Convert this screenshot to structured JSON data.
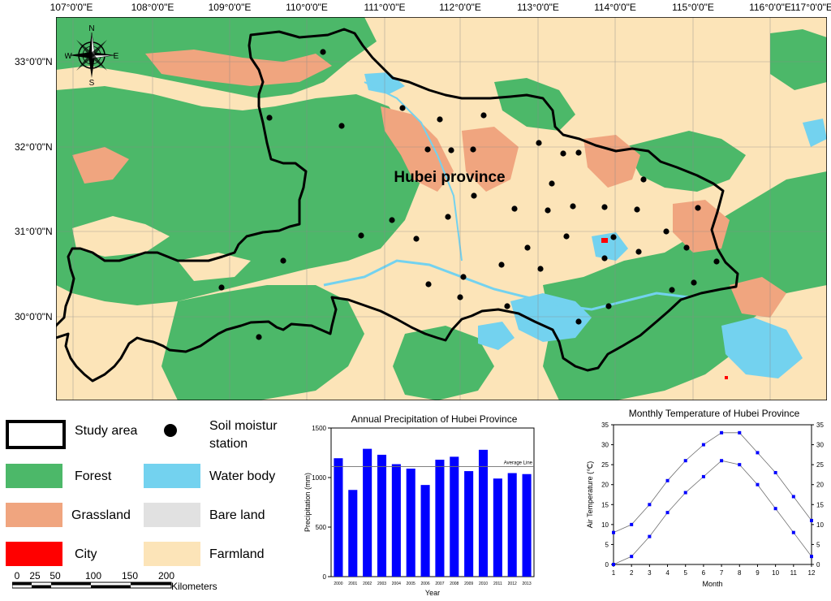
{
  "map": {
    "longitude_labels": [
      "107°0'0\"E",
      "108°0'0\"E",
      "109°0'0\"E",
      "110°0'0\"E",
      "111°0'0\"E",
      "112°0'0\"E",
      "113°0'0\"E",
      "114°0'0\"E",
      "115°0'0\"E",
      "116°0'0\"E",
      "117°0'0\"E"
    ],
    "latitude_labels": [
      "33°0'0\"N",
      "32°0'0\"N",
      "31°0'0\"N",
      "30°0'0\"N"
    ],
    "region_label": "Hubei province",
    "compass": {
      "n": "N",
      "s": "S",
      "e": "E",
      "w": "W"
    },
    "colors": {
      "forest": "#4cb869",
      "grassland": "#f0a57f",
      "city": "#ff0000",
      "water": "#73d2ef",
      "bare": "#e1e1e1",
      "farmland": "#fce4b8",
      "boundary": "#000000"
    }
  },
  "legend": {
    "study_area": "Study area",
    "station_line1": "Soil moistur",
    "station_line2": "station",
    "forest": "Forest",
    "water": "Water body",
    "grassland": "Grassland",
    "bare": "Bare land",
    "city": "City",
    "farmland": "Farmland"
  },
  "scalebar": {
    "ticks": [
      "0",
      "25",
      "50",
      "100",
      "150",
      "200"
    ],
    "unit": "Kilometers"
  },
  "chart_data": [
    {
      "type": "bar",
      "title": "Annual Precipitation of Hubei Province",
      "xlabel": "Year",
      "ylabel": "Precipitation (mm)",
      "categories": [
        "2000",
        "2001",
        "2002",
        "2003",
        "2004",
        "2005",
        "2006",
        "2007",
        "2008",
        "2009",
        "2010",
        "2011",
        "2012",
        "2013"
      ],
      "values": [
        1195,
        875,
        1290,
        1230,
        1135,
        1090,
        925,
        1180,
        1210,
        1065,
        1280,
        990,
        1045,
        1035
      ],
      "ylim": [
        0,
        1500
      ],
      "yticks": [
        "0",
        "500",
        "1000",
        "1500"
      ],
      "reference_line": {
        "label": "Average Line",
        "value": 1110
      },
      "color": "#0000ff"
    },
    {
      "type": "line",
      "title": "Monthly Temperature of Hubei Province",
      "xlabel": "Month",
      "ylabel": "Air Temperature (℃)",
      "x": [
        1,
        2,
        3,
        4,
        5,
        6,
        7,
        8,
        9,
        10,
        11,
        12
      ],
      "series": [
        {
          "values": [
            8,
            10,
            15,
            21,
            26,
            30,
            33,
            33,
            28,
            23,
            17,
            11
          ]
        },
        {
          "values": [
            0,
            2,
            7,
            13,
            18,
            22,
            26,
            25,
            20,
            14,
            8,
            2
          ]
        }
      ],
      "ylim": [
        0,
        35
      ],
      "yticks": [
        "0",
        "5",
        "10",
        "15",
        "20",
        "25",
        "30",
        "35"
      ],
      "marker_color": "#0000ff",
      "line_color": "#6f6f6f"
    }
  ]
}
